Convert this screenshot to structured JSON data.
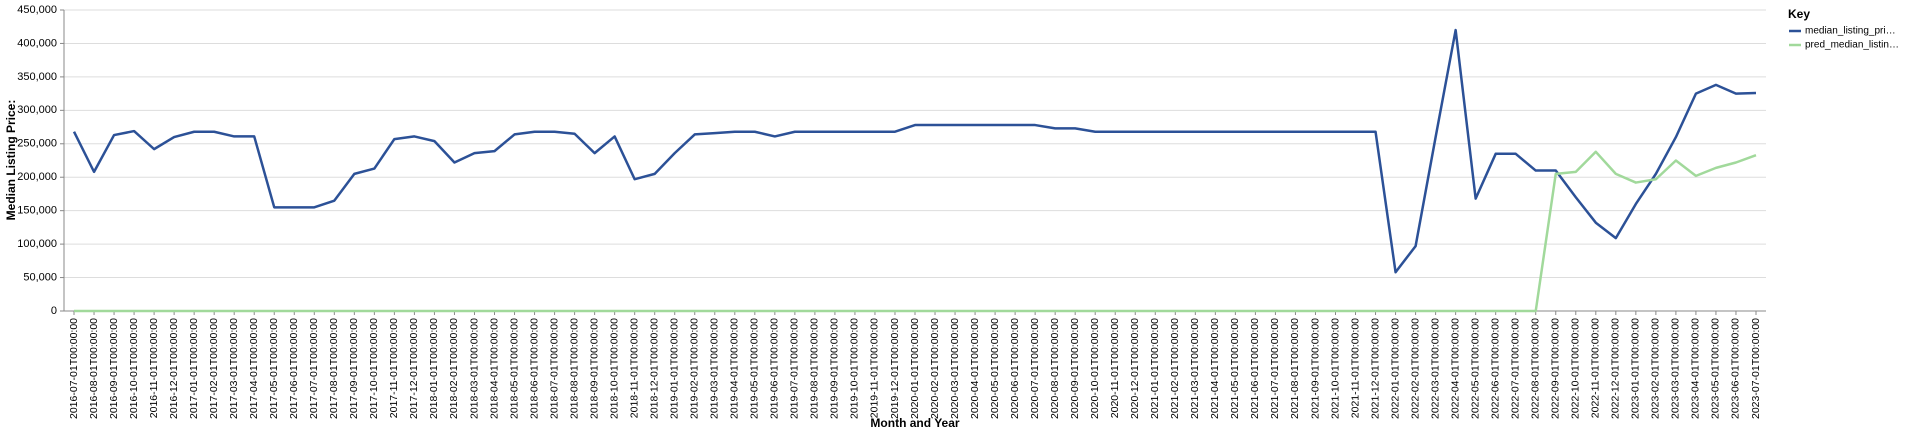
{
  "chart_data": {
    "type": "line",
    "x_label": "Month and Year",
    "y_label": "Median Listing Price:",
    "legend_title": "Key",
    "legend_position": "right",
    "grid": true,
    "categories": [
      "2016-07-01T00:00:00",
      "2016-08-01T00:00:00",
      "2016-09-01T00:00:00",
      "2016-10-01T00:00:00",
      "2016-11-01T00:00:00",
      "2016-12-01T00:00:00",
      "2017-01-01T00:00:00",
      "2017-02-01T00:00:00",
      "2017-03-01T00:00:00",
      "2017-04-01T00:00:00",
      "2017-05-01T00:00:00",
      "2017-06-01T00:00:00",
      "2017-07-01T00:00:00",
      "2017-08-01T00:00:00",
      "2017-09-01T00:00:00",
      "2017-10-01T00:00:00",
      "2017-11-01T00:00:00",
      "2017-12-01T00:00:00",
      "2018-01-01T00:00:00",
      "2018-02-01T00:00:00",
      "2018-03-01T00:00:00",
      "2018-04-01T00:00:00",
      "2018-05-01T00:00:00",
      "2018-06-01T00:00:00",
      "2018-07-01T00:00:00",
      "2018-08-01T00:00:00",
      "2018-09-01T00:00:00",
      "2018-10-01T00:00:00",
      "2018-11-01T00:00:00",
      "2018-12-01T00:00:00",
      "2019-01-01T00:00:00",
      "2019-02-01T00:00:00",
      "2019-03-01T00:00:00",
      "2019-04-01T00:00:00",
      "2019-05-01T00:00:00",
      "2019-06-01T00:00:00",
      "2019-07-01T00:00:00",
      "2019-08-01T00:00:00",
      "2019-09-01T00:00:00",
      "2019-10-01T00:00:00",
      "2019-11-01T00:00:00",
      "2019-12-01T00:00:00",
      "2020-01-01T00:00:00",
      "2020-02-01T00:00:00",
      "2020-03-01T00:00:00",
      "2020-04-01T00:00:00",
      "2020-05-01T00:00:00",
      "2020-06-01T00:00:00",
      "2020-07-01T00:00:00",
      "2020-08-01T00:00:00",
      "2020-09-01T00:00:00",
      "2020-10-01T00:00:00",
      "2020-11-01T00:00:00",
      "2020-12-01T00:00:00",
      "2021-01-01T00:00:00",
      "2021-02-01T00:00:00",
      "2021-03-01T00:00:00",
      "2021-04-01T00:00:00",
      "2021-05-01T00:00:00",
      "2021-06-01T00:00:00",
      "2021-07-01T00:00:00",
      "2021-08-01T00:00:00",
      "2021-09-01T00:00:00",
      "2021-10-01T00:00:00",
      "2021-11-01T00:00:00",
      "2021-12-01T00:00:00",
      "2022-01-01T00:00:00",
      "2022-02-01T00:00:00",
      "2022-03-01T00:00:00",
      "2022-04-01T00:00:00",
      "2022-05-01T00:00:00",
      "2022-06-01T00:00:00",
      "2022-07-01T00:00:00",
      "2022-08-01T00:00:00",
      "2022-09-01T00:00:00",
      "2022-10-01T00:00:00",
      "2022-11-01T00:00:00",
      "2022-12-01T00:00:00",
      "2023-01-01T00:00:00",
      "2023-02-01T00:00:00",
      "2023-03-01T00:00:00",
      "2023-04-01T00:00:00",
      "2023-05-01T00:00:00",
      "2023-06-01T00:00:00",
      "2023-07-01T00:00:00"
    ],
    "series": [
      {
        "name": "median_listing_pri…",
        "color": "#2c5197",
        "values": [
          268000,
          208000,
          263000,
          269000,
          242000,
          260000,
          268000,
          268000,
          261000,
          261000,
          155000,
          155000,
          155000,
          165000,
          205000,
          213000,
          257000,
          261000,
          254000,
          222000,
          236000,
          239000,
          264000,
          268000,
          268000,
          265000,
          236000,
          261000,
          197000,
          205000,
          236000,
          264000,
          266000,
          268000,
          268000,
          261000,
          268000,
          268000,
          268000,
          268000,
          268000,
          268000,
          278000,
          278000,
          278000,
          278000,
          278000,
          278000,
          278000,
          273000,
          273000,
          268000,
          268000,
          268000,
          268000,
          268000,
          268000,
          268000,
          268000,
          268000,
          268000,
          268000,
          268000,
          268000,
          268000,
          268000,
          58000,
          97000,
          260000,
          420000,
          168000,
          235000,
          235000,
          210000,
          210000,
          170000,
          132000,
          109000,
          160000,
          205000,
          260000,
          325000,
          338000,
          325000,
          326000
        ]
      },
      {
        "name": "pred_median_listin…",
        "color": "#a1d99b",
        "values": [
          0,
          0,
          0,
          0,
          0,
          0,
          0,
          0,
          0,
          0,
          0,
          0,
          0,
          0,
          0,
          0,
          0,
          0,
          0,
          0,
          0,
          0,
          0,
          0,
          0,
          0,
          0,
          0,
          0,
          0,
          0,
          0,
          0,
          0,
          0,
          0,
          0,
          0,
          0,
          0,
          0,
          0,
          0,
          0,
          0,
          0,
          0,
          0,
          0,
          0,
          0,
          0,
          0,
          0,
          0,
          0,
          0,
          0,
          0,
          0,
          0,
          0,
          0,
          0,
          0,
          0,
          0,
          0,
          0,
          0,
          0,
          0,
          0,
          0,
          205000,
          208000,
          238000,
          205000,
          192000,
          197000,
          225000,
          202000,
          214000,
          222000,
          233000
        ]
      }
    ],
    "ylim": [
      0,
      450000
    ],
    "yticks": [
      0,
      {
        "value": 50000,
        "label": "50,000"
      },
      {
        "value": 100000,
        "label": "100,000"
      },
      {
        "value": 150000,
        "label": "150,000"
      },
      {
        "value": 200000,
        "label": "200,000"
      },
      {
        "value": 250000,
        "label": "250,000"
      },
      {
        "value": 300000,
        "label": "300,000"
      },
      {
        "value": 350000,
        "label": "350,000"
      },
      {
        "value": 400000,
        "label": "400,000"
      },
      {
        "value": 450000,
        "label": "450,000"
      }
    ]
  }
}
